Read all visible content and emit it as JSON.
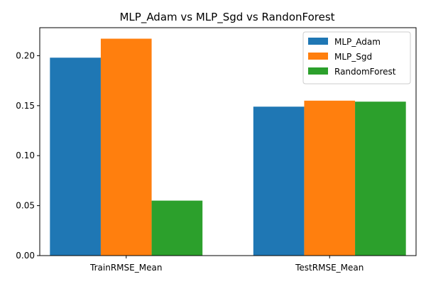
{
  "chart_data": {
    "type": "bar",
    "title": "MLP_Adam vs MLP_Sgd vs RandonForest",
    "xlabel": "",
    "ylabel": "",
    "categories": [
      "TrainRMSE_Mean",
      "TestRMSE_Mean"
    ],
    "series": [
      {
        "name": "MLP_Adam",
        "values": [
          0.198,
          0.149
        ],
        "color": "#1f77b4"
      },
      {
        "name": "MLP_Sgd",
        "values": [
          0.217,
          0.155
        ],
        "color": "#ff7f0e"
      },
      {
        "name": "RandomForest",
        "values": [
          0.055,
          0.154
        ],
        "color": "#2ca02c"
      }
    ],
    "ylim": [
      0,
      0.228
    ],
    "yticks": [
      0.0,
      0.05,
      0.1,
      0.15,
      0.2
    ],
    "ytick_labels": [
      "0.00",
      "0.05",
      "0.10",
      "0.15",
      "0.20"
    ],
    "grid": false,
    "legend": {
      "position": "top-right"
    }
  }
}
